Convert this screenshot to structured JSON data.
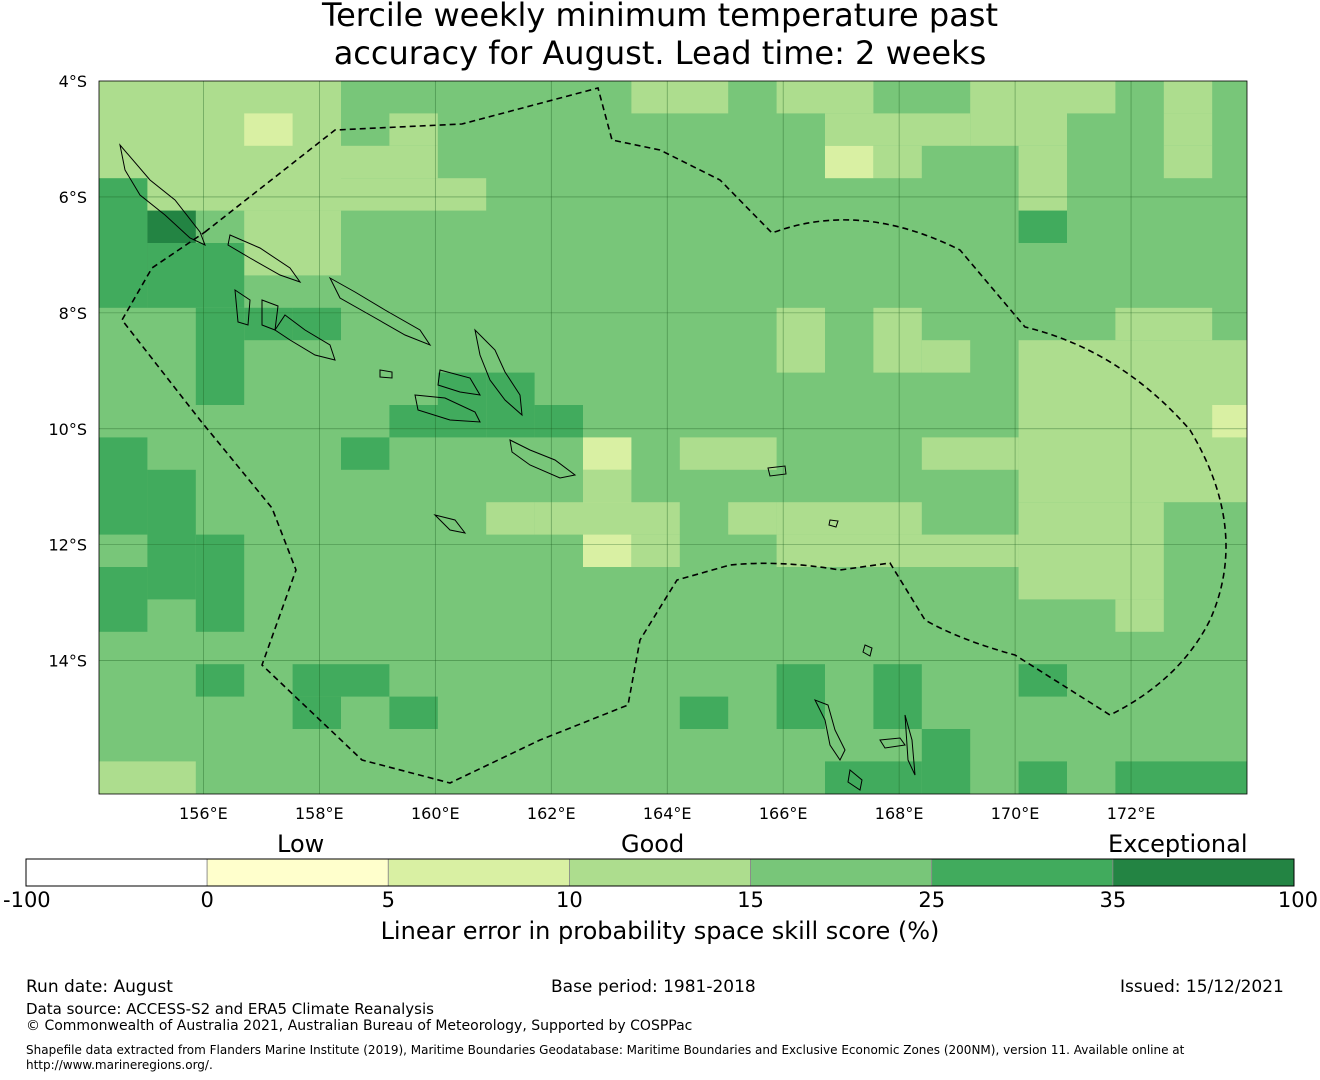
{
  "title_line1": "Tercile weekly minimum temperature past",
  "title_line2": "accuracy for August. Lead time: 2 weeks",
  "map": {
    "lon_range": [
      154.2,
      174.0
    ],
    "lat_range": [
      -16.3,
      -4.0
    ],
    "lon_ticks": [
      156,
      158,
      160,
      162,
      164,
      166,
      168,
      170,
      172
    ],
    "lat_ticks": [
      -4,
      -6,
      -8,
      -10,
      -12,
      -14
    ],
    "lon_labels": [
      "156°E",
      "158°E",
      "160°E",
      "162°E",
      "164°E",
      "166°E",
      "168°E",
      "170°E",
      "172°E"
    ],
    "lat_labels": [
      "4°S",
      "6°S",
      "8°S",
      "10°S",
      "12°S",
      "14°S"
    ],
    "grid_lines": true,
    "background_category": "15-25"
  },
  "colorbar": {
    "bounds": [
      "-100",
      "0",
      "5",
      "10",
      "15",
      "25",
      "35",
      "100"
    ],
    "colors": [
      "#ffffff",
      "#ffffcc",
      "#d9f0a3",
      "#addd8e",
      "#78c679",
      "#41ab5d",
      "#238443"
    ],
    "categories": [
      "Low",
      "Good",
      "Exceptional"
    ],
    "title": "Linear error in probability space skill score (%)"
  },
  "footer": {
    "run_date": "Run date: August",
    "base_period": "Base period: 1981-2018",
    "issued": "Issued: 15/12/2021",
    "data_source": "Data source: ACCESS-S2 and ERA5 Climate Reanalysis",
    "copyright": "© Commonwealth of Australia 2021, Australian Bureau of Meteorology, Supported by COSPPac",
    "shapefile": "Shapefile data extracted from Flanders Marine Institute (2019), Maritime Boundaries Geodatabase: Maritime Boundaries and Exclusive Economic Zones (200NM), version 11. Available online at http://www.marineregions.org/."
  }
}
